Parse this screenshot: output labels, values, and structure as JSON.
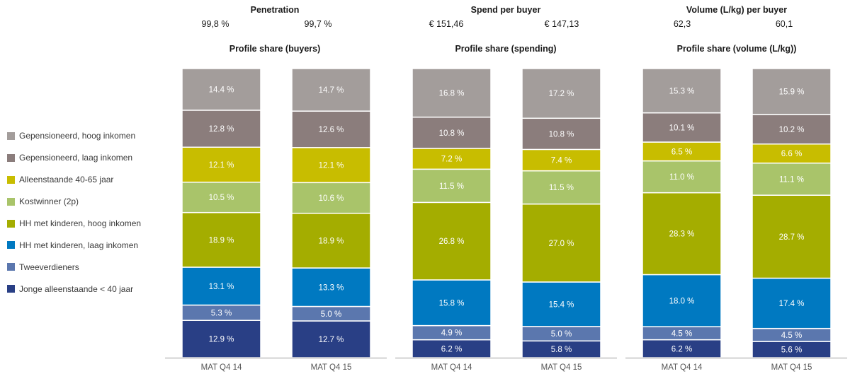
{
  "legend": [
    {
      "label": "Gepensioneerd, hoog inkomen",
      "color": "#a39d9b"
    },
    {
      "label": "Gepensioneerd, laag inkomen",
      "color": "#8b7d7c"
    },
    {
      "label": "Alleenstaande 40-65 jaar",
      "color": "#c8bd00"
    },
    {
      "label": "Kostwinner (2p)",
      "color": "#a9c46a"
    },
    {
      "label": "HH met kinderen, hoog inkomen",
      "color": "#a4ad00"
    },
    {
      "label": "HH met kinderen, laag inkomen",
      "color": "#0079c1"
    },
    {
      "label": "Tweeverdieners",
      "color": "#5b77ae"
    },
    {
      "label": "Jonge alleenstaande < 40 jaar",
      "color": "#293f85"
    }
  ],
  "chart_data": [
    {
      "type": "bar",
      "stacked": true,
      "metric_title": "Penetration",
      "metric_values": [
        "99,8 %",
        "99,7 %"
      ],
      "title": "Profile share (buyers)",
      "categories": [
        "MAT Q4 14",
        "MAT Q4 15"
      ],
      "series": [
        {
          "name": "Jonge alleenstaande < 40 jaar",
          "values": [
            12.9,
            12.7
          ],
          "labels": [
            "12.9 %",
            "12.7 %"
          ]
        },
        {
          "name": "Tweeverdieners",
          "values": [
            5.3,
            5.0
          ],
          "labels": [
            "5.3 %",
            "5.0 %"
          ]
        },
        {
          "name": "HH met kinderen, laag inkomen",
          "values": [
            13.1,
            13.3
          ],
          "labels": [
            "13.1 %",
            "13.3 %"
          ]
        },
        {
          "name": "HH met kinderen, hoog inkomen",
          "values": [
            18.9,
            18.9
          ],
          "labels": [
            "18.9 %",
            "18.9 %"
          ]
        },
        {
          "name": "Kostwinner (2p)",
          "values": [
            10.5,
            10.6
          ],
          "labels": [
            "10.5 %",
            "10.6 %"
          ]
        },
        {
          "name": "Alleenstaande 40-65 jaar",
          "values": [
            12.1,
            12.1
          ],
          "labels": [
            "12.1 %",
            "12.1 %"
          ]
        },
        {
          "name": "Gepensioneerd, laag inkomen",
          "values": [
            12.8,
            12.6
          ],
          "labels": [
            "12.8 %",
            "12.6 %"
          ]
        },
        {
          "name": "Gepensioneerd, hoog inkomen",
          "values": [
            14.4,
            14.7
          ],
          "labels": [
            "14.4 %",
            "14.7 %"
          ]
        }
      ]
    },
    {
      "type": "bar",
      "stacked": true,
      "metric_title": "Spend per buyer",
      "metric_values": [
        "€ 151,46",
        "€ 147,13"
      ],
      "title": "Profile share (spending)",
      "categories": [
        "MAT Q4 14",
        "MAT Q4 15"
      ],
      "series": [
        {
          "name": "Jonge alleenstaande < 40 jaar",
          "values": [
            6.2,
            5.8
          ],
          "labels": [
            "6.2 %",
            "5.8 %"
          ]
        },
        {
          "name": "Tweeverdieners",
          "values": [
            4.9,
            5.0
          ],
          "labels": [
            "4.9 %",
            "5.0 %"
          ]
        },
        {
          "name": "HH met kinderen, laag inkomen",
          "values": [
            15.8,
            15.4
          ],
          "labels": [
            "15.8 %",
            "15.4 %"
          ]
        },
        {
          "name": "HH met kinderen, hoog inkomen",
          "values": [
            26.8,
            27.0
          ],
          "labels": [
            "26.8 %",
            "27.0 %"
          ]
        },
        {
          "name": "Kostwinner (2p)",
          "values": [
            11.5,
            11.5
          ],
          "labels": [
            "11.5 %",
            "11.5 %"
          ]
        },
        {
          "name": "Alleenstaande 40-65 jaar",
          "values": [
            7.2,
            7.4
          ],
          "labels": [
            "7.2 %",
            "7.4 %"
          ]
        },
        {
          "name": "Gepensioneerd, laag inkomen",
          "values": [
            10.8,
            10.8
          ],
          "labels": [
            "10.8 %",
            "10.8 %"
          ]
        },
        {
          "name": "Gepensioneerd, hoog inkomen",
          "values": [
            16.8,
            17.2
          ],
          "labels": [
            "16.8 %",
            "17.2 %"
          ]
        }
      ]
    },
    {
      "type": "bar",
      "stacked": true,
      "metric_title": "Volume (L/kg) per buyer",
      "metric_values": [
        "62,3",
        "60,1"
      ],
      "title": "Profile share (volume (L/kg))",
      "categories": [
        "MAT Q4 14",
        "MAT Q4 15"
      ],
      "series": [
        {
          "name": "Jonge alleenstaande < 40 jaar",
          "values": [
            6.2,
            5.6
          ],
          "labels": [
            "6.2 %",
            "5.6 %"
          ]
        },
        {
          "name": "Tweeverdieners",
          "values": [
            4.5,
            4.5
          ],
          "labels": [
            "4.5 %",
            "4.5 %"
          ]
        },
        {
          "name": "HH met kinderen, laag inkomen",
          "values": [
            18.0,
            17.4
          ],
          "labels": [
            "18.0 %",
            "17.4 %"
          ]
        },
        {
          "name": "HH met kinderen, hoog inkomen",
          "values": [
            28.3,
            28.7
          ],
          "labels": [
            "28.3 %",
            "28.7 %"
          ]
        },
        {
          "name": "Kostwinner (2p)",
          "values": [
            11.0,
            11.1
          ],
          "labels": [
            "11.0 %",
            "11.1 %"
          ]
        },
        {
          "name": "Alleenstaande 40-65 jaar",
          "values": [
            6.5,
            6.6
          ],
          "labels": [
            "6.5 %",
            "6.6 %"
          ]
        },
        {
          "name": "Gepensioneerd, laag inkomen",
          "values": [
            10.1,
            10.2
          ],
          "labels": [
            "10.1 %",
            "10.2 %"
          ]
        },
        {
          "name": "Gepensioneerd, hoog inkomen",
          "values": [
            15.3,
            15.9
          ],
          "labels": [
            "15.3 %",
            "15.9 %"
          ]
        }
      ]
    }
  ]
}
